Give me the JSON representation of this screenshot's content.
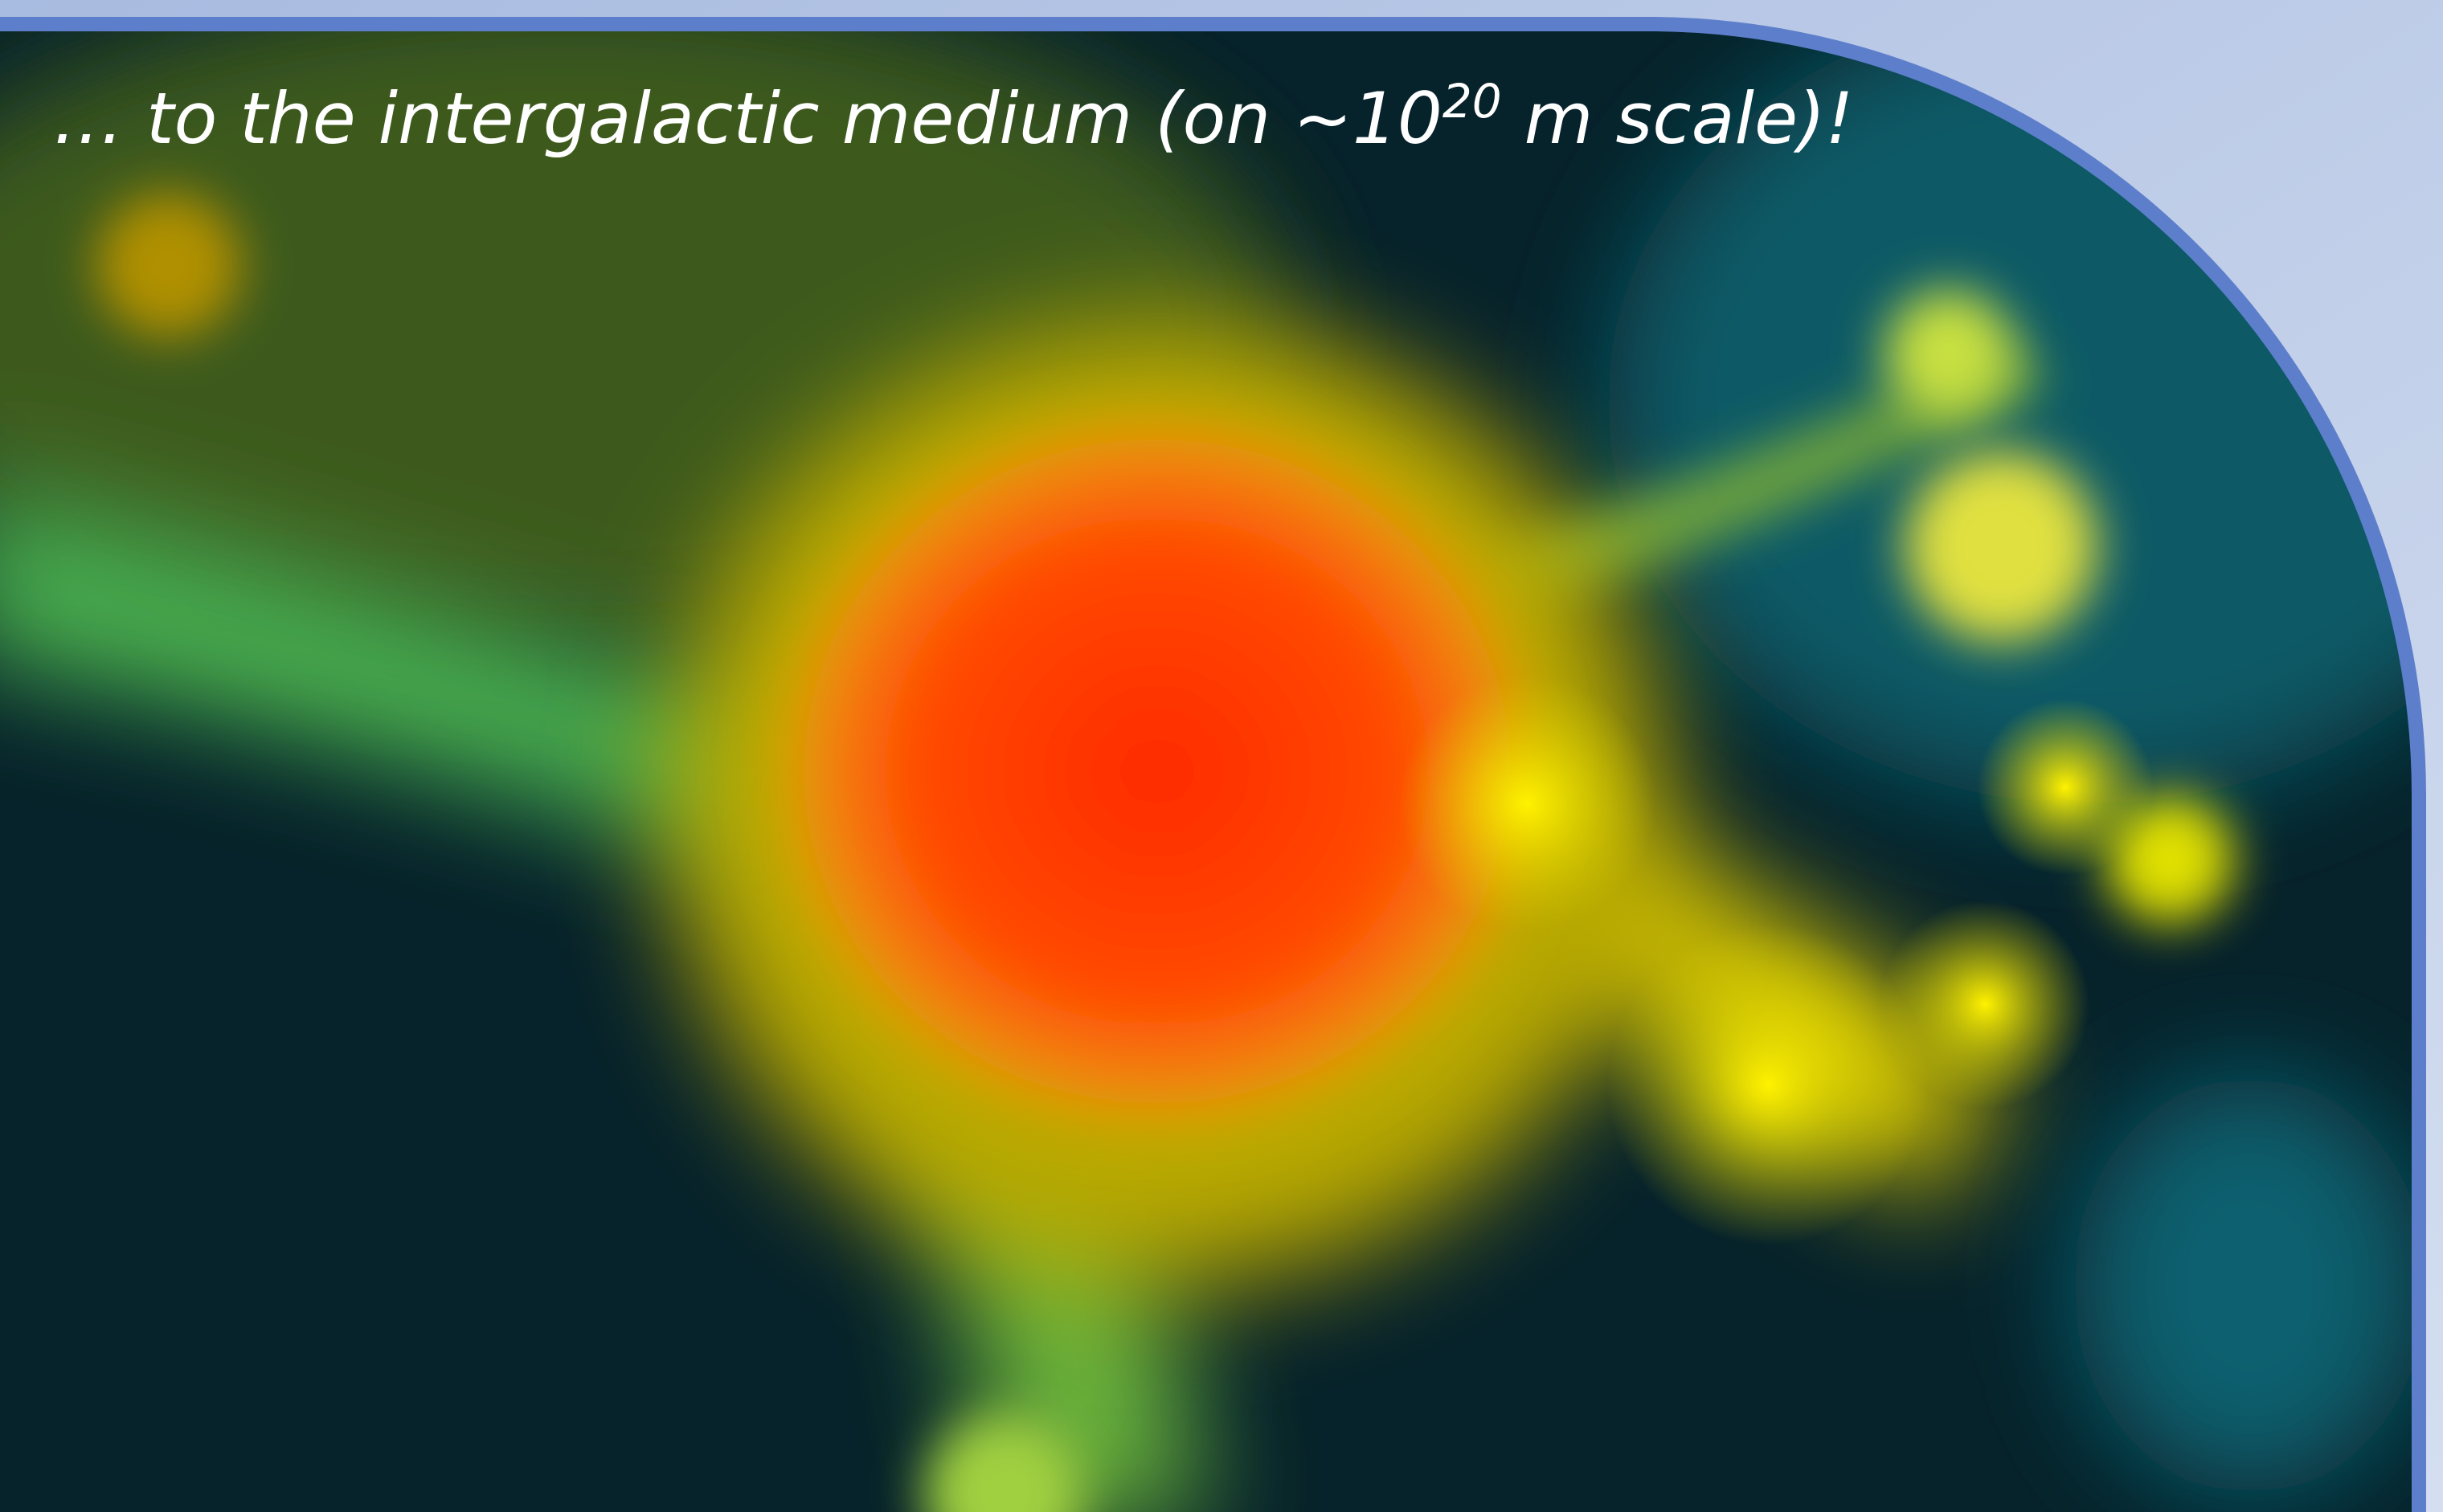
{
  "slide": {
    "caption": {
      "text": "… to the intergalactic medium (on ~10",
      "superscript": "20",
      "text_after": " m scale)!"
    }
  }
}
